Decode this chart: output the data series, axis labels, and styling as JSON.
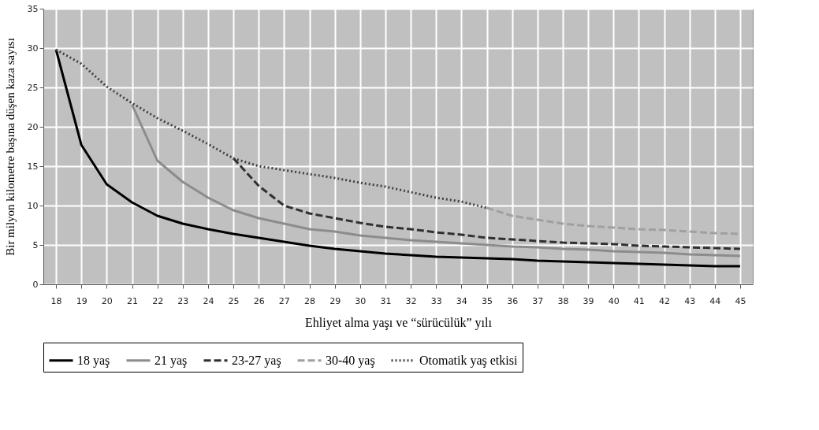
{
  "chart_data": {
    "type": "line",
    "xlabel": "Ehliyet alma yaşı ve “sürücülük” yılı",
    "ylabel": "Bir milyon kilometre başına düşen kaza sayısı",
    "xlim": [
      17.5,
      45.5
    ],
    "xticks": [
      18,
      19,
      20,
      21,
      22,
      23,
      24,
      25,
      26,
      27,
      28,
      29,
      30,
      31,
      32,
      33,
      34,
      35,
      36,
      37,
      38,
      39,
      40,
      41,
      42,
      43,
      44,
      45
    ],
    "ylim": [
      0,
      35
    ],
    "yticks": [
      0,
      5,
      10,
      15,
      20,
      25,
      30,
      35
    ],
    "grid": true,
    "legend": "bottom",
    "marker": "none",
    "series": [
      {
        "name": "18 yaş",
        "color": "#000000",
        "line_style": "solid",
        "x": [
          18,
          19,
          20,
          21,
          22,
          23,
          24,
          25,
          26,
          27,
          28,
          29,
          30,
          31,
          32,
          33,
          34,
          35,
          36,
          37,
          38,
          39,
          40,
          41,
          42,
          43,
          44,
          45
        ],
        "values": [
          29.8,
          17.7,
          12.7,
          10.4,
          8.7,
          7.7,
          7.0,
          6.4,
          5.9,
          5.4,
          4.9,
          4.5,
          4.2,
          3.9,
          3.7,
          3.5,
          3.4,
          3.3,
          3.2,
          3.0,
          2.9,
          2.8,
          2.7,
          2.6,
          2.5,
          2.4,
          2.3,
          2.3
        ]
      },
      {
        "name": "21 yaş",
        "color": "#8c8c8c",
        "line_style": "solid",
        "x": [
          21,
          22,
          23,
          24,
          25,
          26,
          27,
          28,
          29,
          30,
          31,
          32,
          33,
          34,
          35,
          36,
          37,
          38,
          39,
          40,
          41,
          42,
          43,
          44,
          45
        ],
        "values": [
          22.8,
          15.7,
          13.0,
          11.0,
          9.4,
          8.4,
          7.7,
          7.0,
          6.7,
          6.2,
          5.9,
          5.6,
          5.4,
          5.2,
          5.0,
          4.8,
          4.7,
          4.5,
          4.4,
          4.2,
          4.1,
          4.0,
          3.8,
          3.7,
          3.6
        ]
      },
      {
        "name": "23-27 yaş",
        "color": "#303030",
        "line_style": "dashed",
        "x": [
          25,
          26,
          27,
          28,
          29,
          30,
          31,
          32,
          33,
          34,
          35,
          36,
          37,
          38,
          39,
          40,
          41,
          42,
          43,
          44,
          45
        ],
        "values": [
          16.0,
          12.5,
          10.0,
          9.0,
          8.4,
          7.8,
          7.3,
          7.0,
          6.6,
          6.3,
          5.9,
          5.7,
          5.5,
          5.3,
          5.2,
          5.1,
          4.9,
          4.8,
          4.7,
          4.6,
          4.5
        ]
      },
      {
        "name": "30-40 yaş",
        "color": "#a0a0a0",
        "line_style": "dashed",
        "x": [
          35,
          36,
          37,
          38,
          39,
          40,
          41,
          42,
          43,
          44,
          45
        ],
        "values": [
          9.7,
          8.7,
          8.2,
          7.7,
          7.4,
          7.2,
          7.0,
          6.9,
          6.7,
          6.5,
          6.4
        ]
      },
      {
        "name": "Otomatik yaş etkisi",
        "color": "#404040",
        "line_style": "dotted",
        "x": [
          18,
          19,
          20,
          21,
          22,
          23,
          24,
          25,
          26,
          27,
          28,
          29,
          30,
          31,
          32,
          33,
          34,
          35
        ],
        "values": [
          29.8,
          28.0,
          25.1,
          23.0,
          21.1,
          19.5,
          17.8,
          16.0,
          15.0,
          14.5,
          14.0,
          13.5,
          12.9,
          12.4,
          11.7,
          11.0,
          10.5,
          9.7
        ]
      }
    ]
  }
}
